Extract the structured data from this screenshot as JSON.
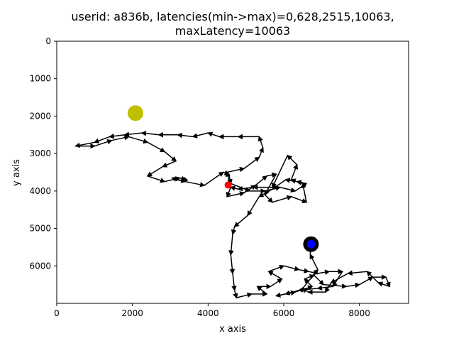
{
  "chart_data": {
    "type": "line",
    "title_line1": "userid: a836b, latencies(min->max)=0,628,2515,10063,",
    "title_line2": "maxLatency=10063",
    "xlabel": "x axis",
    "ylabel": "y axis",
    "xlim": [
      0,
      9300
    ],
    "ylim": [
      7000,
      0
    ],
    "y_inverted": true,
    "grid": false,
    "xticks": [
      0,
      2000,
      4000,
      6000,
      8000
    ],
    "yticks": [
      0,
      1000,
      2000,
      3000,
      4000,
      5000,
      6000
    ],
    "colors": {
      "path": "#000000",
      "start_marker": "#ff0000",
      "end_marker": "#0000ff",
      "end_ring": "#000000",
      "target_marker": "#bfbf00"
    },
    "markers": {
      "target": {
        "x": 2080,
        "y": 1920
      },
      "start": {
        "x": 4530,
        "y": 3840
      },
      "end": {
        "x": 6720,
        "y": 5420
      }
    },
    "path_points": [
      [
        4530,
        3840
      ],
      [
        4600,
        3900
      ],
      [
        4500,
        4150
      ],
      [
        4950,
        4050
      ],
      [
        5250,
        3850
      ],
      [
        5550,
        3600
      ],
      [
        5800,
        3550
      ],
      [
        5500,
        4100
      ],
      [
        5700,
        4300
      ],
      [
        6200,
        4150
      ],
      [
        6600,
        4300
      ],
      [
        6500,
        3800
      ],
      [
        6200,
        3700
      ],
      [
        6350,
        3300
      ],
      [
        6100,
        3050
      ],
      [
        5700,
        3900
      ],
      [
        5200,
        3900
      ],
      [
        4800,
        3950
      ],
      [
        4600,
        3900
      ],
      [
        4500,
        3500
      ],
      [
        4950,
        3400
      ],
      [
        5350,
        3100
      ],
      [
        5450,
        2850
      ],
      [
        5350,
        2550
      ],
      [
        4800,
        2550
      ],
      [
        4300,
        2550
      ],
      [
        4000,
        2450
      ],
      [
        3600,
        2550
      ],
      [
        3200,
        2500
      ],
      [
        2700,
        2500
      ],
      [
        2250,
        2450
      ],
      [
        1800,
        2500
      ],
      [
        1400,
        2550
      ],
      [
        1000,
        2700
      ],
      [
        500,
        2800
      ],
      [
        1000,
        2800
      ],
      [
        1450,
        2650
      ],
      [
        1900,
        2550
      ],
      [
        2400,
        2700
      ],
      [
        2850,
        2950
      ],
      [
        3150,
        3200
      ],
      [
        2800,
        3350
      ],
      [
        2400,
        3600
      ],
      [
        2850,
        3750
      ],
      [
        3250,
        3650
      ],
      [
        3400,
        3700
      ],
      [
        3350,
        3750
      ],
      [
        3050,
        3650
      ],
      [
        3400,
        3750
      ],
      [
        3900,
        3850
      ],
      [
        4400,
        3500
      ],
      [
        4550,
        3550
      ],
      [
        4600,
        3800
      ],
      [
        5100,
        4000
      ],
      [
        5500,
        4000
      ],
      [
        5900,
        3900
      ],
      [
        6300,
        4000
      ],
      [
        6600,
        3800
      ],
      [
        6350,
        3750
      ],
      [
        6050,
        3700
      ],
      [
        5700,
        3950
      ],
      [
        5350,
        4150
      ],
      [
        5050,
        4650
      ],
      [
        4700,
        4950
      ],
      [
        4650,
        5150
      ],
      [
        4600,
        5700
      ],
      [
        4650,
        6200
      ],
      [
        4700,
        6650
      ],
      [
        4750,
        6850
      ],
      [
        5150,
        6750
      ],
      [
        5550,
        6750
      ],
      [
        5300,
        6550
      ],
      [
        5650,
        6550
      ],
      [
        5950,
        6350
      ],
      [
        5600,
        6150
      ],
      [
        6000,
        6000
      ],
      [
        6400,
        6100
      ],
      [
        6650,
        6150
      ],
      [
        6900,
        6200
      ],
      [
        7200,
        6150
      ],
      [
        7550,
        6150
      ],
      [
        7300,
        6550
      ],
      [
        6900,
        6600
      ],
      [
        6400,
        6650
      ],
      [
        6050,
        6750
      ],
      [
        5800,
        6800
      ],
      [
        6300,
        6700
      ],
      [
        6750,
        6550
      ],
      [
        6550,
        6350
      ],
      [
        6800,
        6250
      ],
      [
        7050,
        6500
      ],
      [
        7650,
        6550
      ],
      [
        8000,
        6500
      ],
      [
        8350,
        6300
      ],
      [
        8700,
        6300
      ],
      [
        8800,
        6550
      ],
      [
        8500,
        6450
      ],
      [
        8200,
        6150
      ],
      [
        7700,
        6200
      ],
      [
        7250,
        6450
      ],
      [
        7100,
        6700
      ],
      [
        6650,
        6700
      ],
      [
        6500,
        6600
      ],
      [
        6900,
        6100
      ],
      [
        6700,
        5700
      ],
      [
        6720,
        5420
      ]
    ]
  }
}
